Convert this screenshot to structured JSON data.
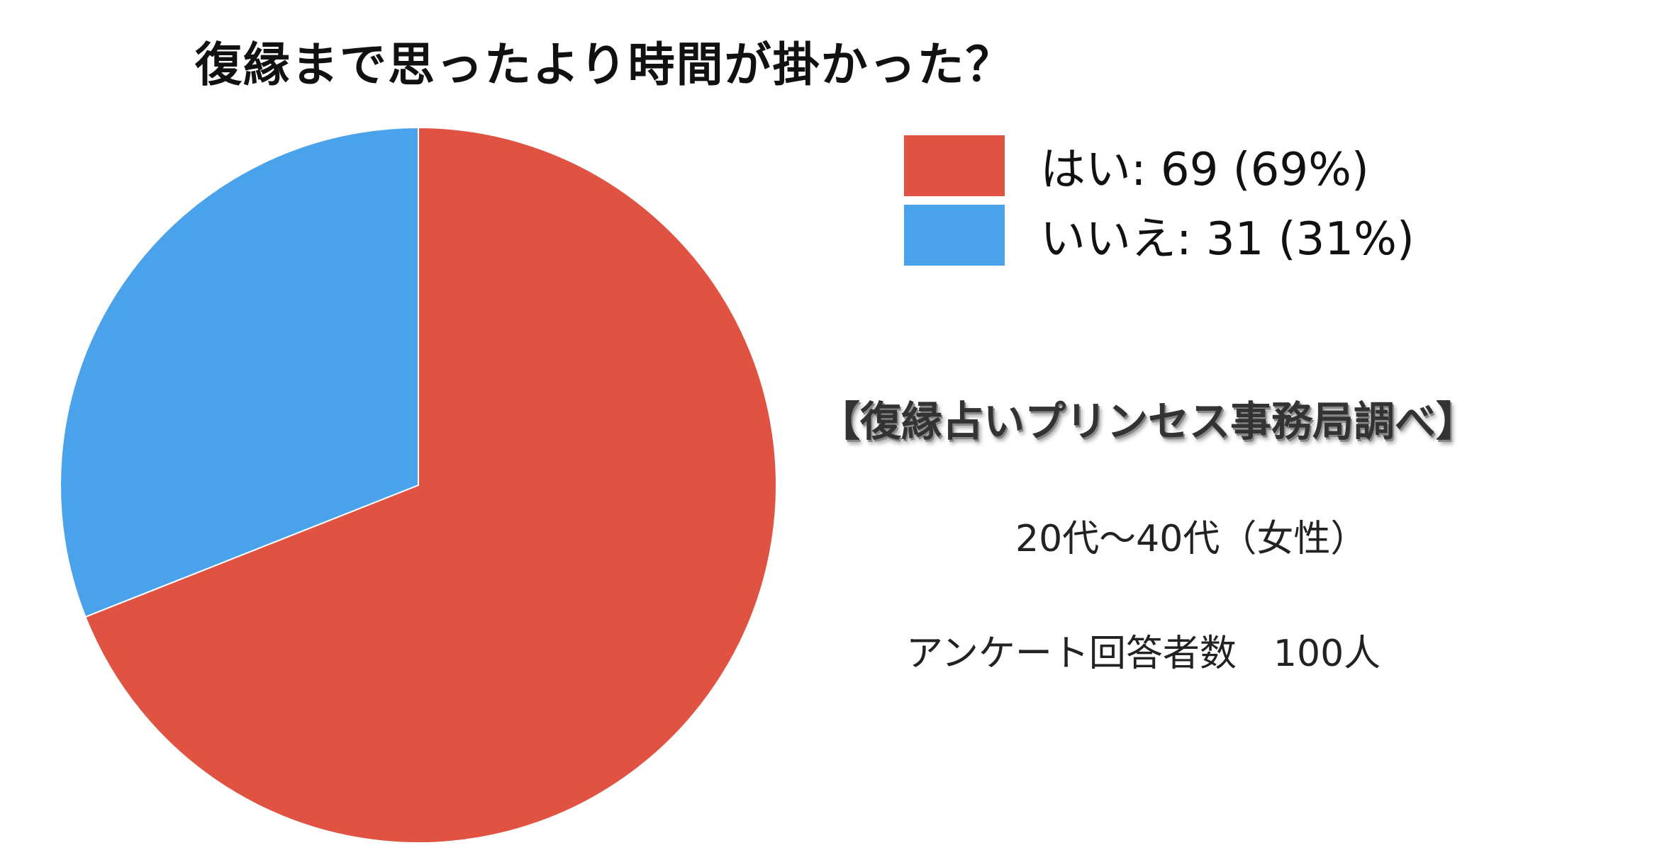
{
  "chart_data": {
    "type": "pie",
    "title": "復縁まで思ったより時間が掛かった？",
    "categories": [
      "はい",
      "いいえ"
    ],
    "values": [
      69,
      31
    ],
    "percentages": [
      69,
      31
    ],
    "colors": [
      "#e05241",
      "#4aa3ea"
    ],
    "start_angle_deg": 0,
    "direction": "clockwise",
    "legend": [
      {
        "label": "はい: 69 (69%)",
        "color": "#e05241"
      },
      {
        "label": "いいえ: 31 (31%)",
        "color": "#4aa3ea"
      }
    ],
    "legend_position": "top-right"
  },
  "notes": {
    "source": "【復縁占いプリンセス事務局調べ】",
    "age": "20代〜40代（女性）",
    "respondents": "アンケート回答者数　100人"
  }
}
